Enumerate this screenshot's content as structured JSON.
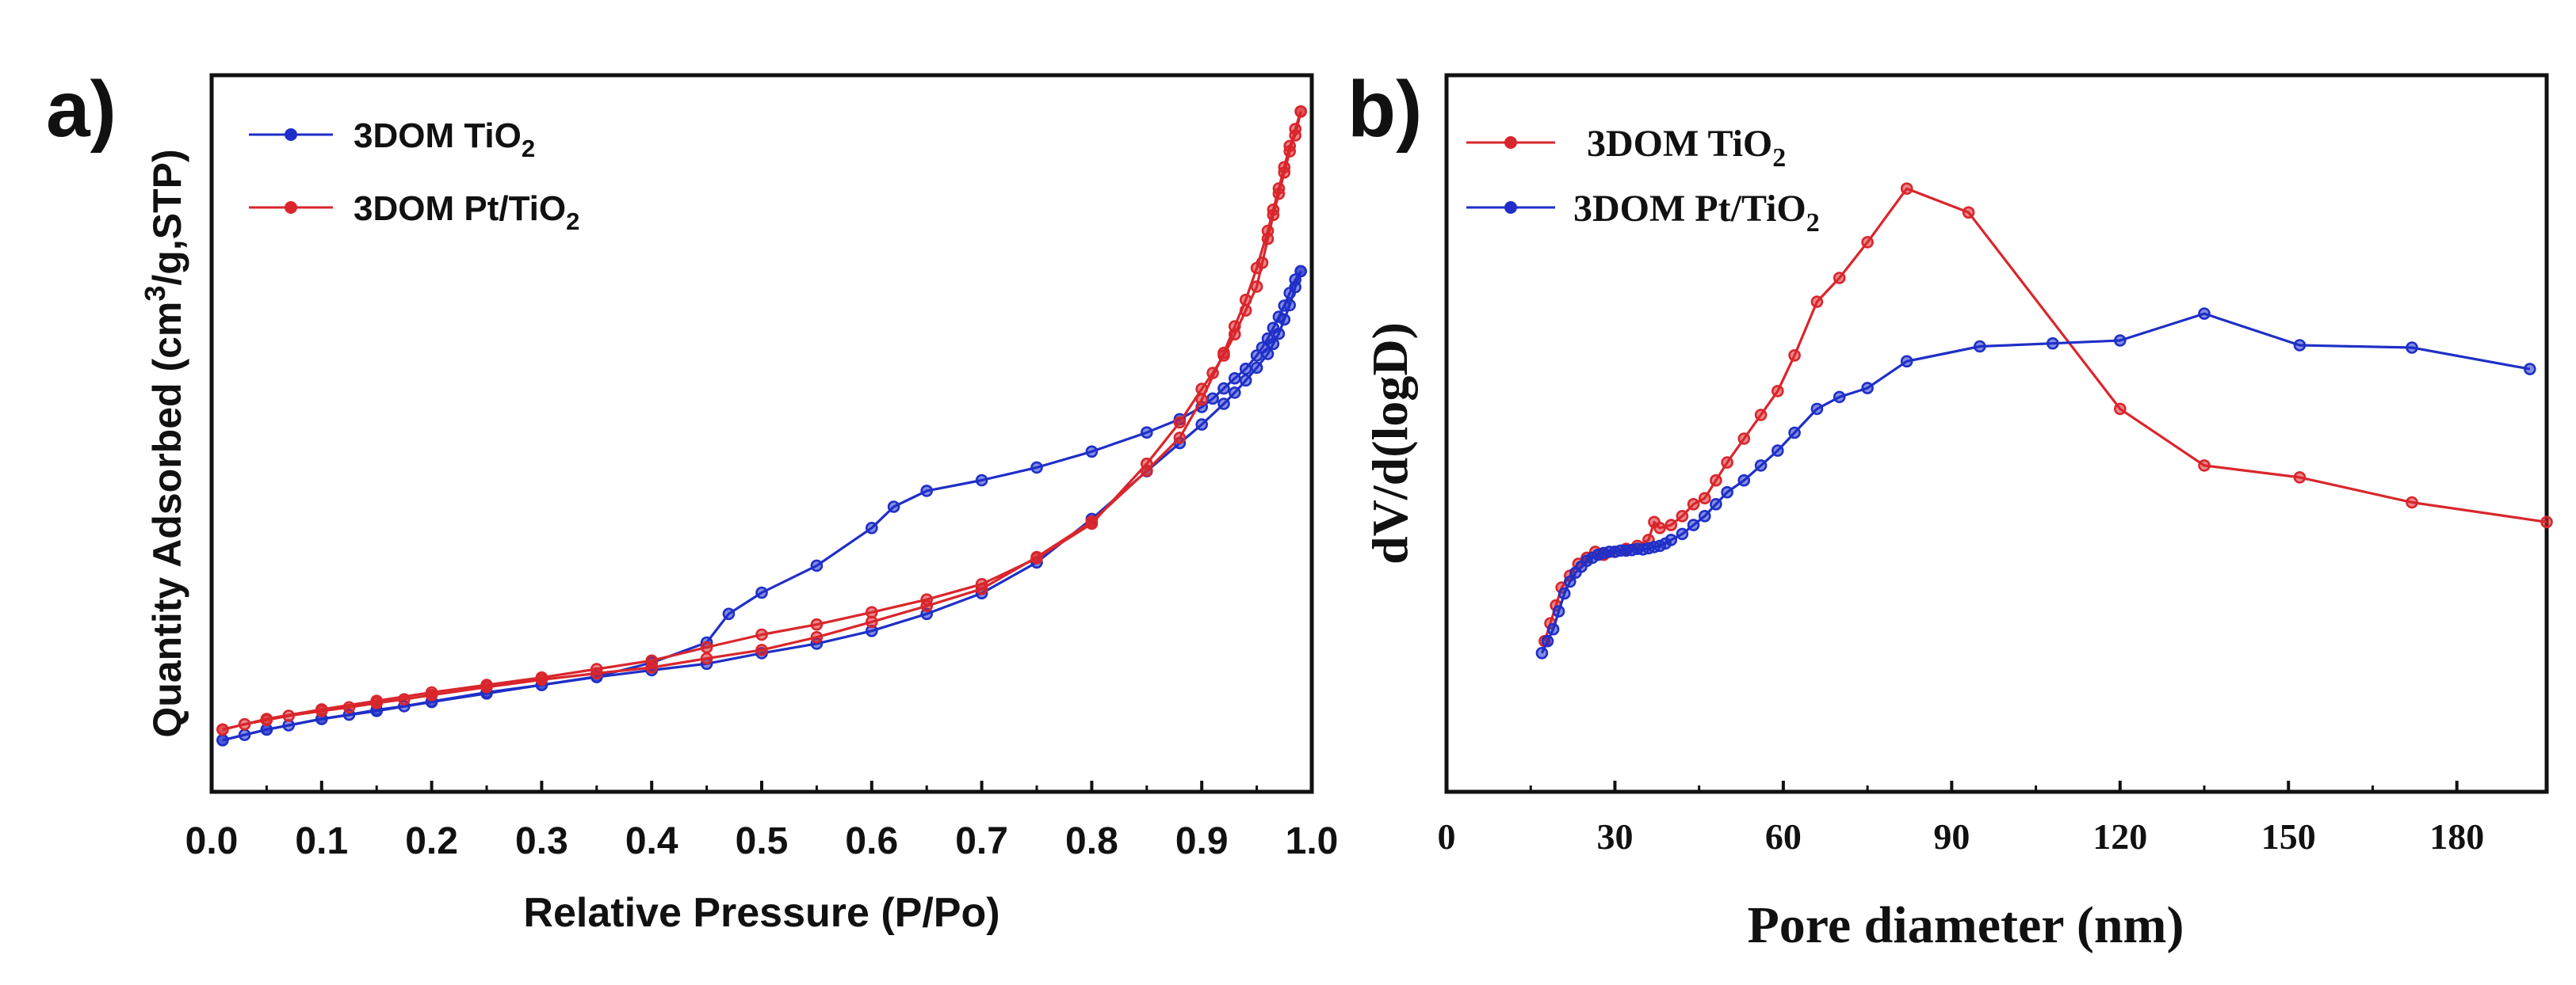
{
  "colors": {
    "blue": "#1f2fc8",
    "red": "#d9262c",
    "axis": "#111111"
  },
  "chart_data": [
    {
      "type": "line",
      "panel_label": "a)",
      "xlabel": "Relative Pressure (P/Po)",
      "ylabel": {
        "pre": "Quantity Adsorbed (cm",
        "sup": "3",
        "post": "/g,STP)"
      },
      "xlim": [
        0.0,
        1.0
      ],
      "ylim": [
        0,
        100
      ],
      "y_ticks_labeled": false,
      "xticks": [
        0.0,
        0.1,
        0.2,
        0.3,
        0.4,
        0.5,
        0.6,
        0.7,
        0.8,
        0.9,
        1.0
      ],
      "xtick_labels": [
        "0.0",
        "0.1",
        "0.2",
        "0.3",
        "0.4",
        "0.5",
        "0.6",
        "0.7",
        "0.8",
        "0.9",
        "1.0"
      ],
      "legend_position": "top-left",
      "series": [
        {
          "name": {
            "pre": "3DOM TiO",
            "sub": "2",
            "post": ""
          },
          "color": "blue",
          "adsorption": {
            "x": [
              0.01,
              0.03,
              0.05,
              0.07,
              0.1,
              0.125,
              0.15,
              0.175,
              0.2,
              0.25,
              0.3,
              0.35,
              0.4,
              0.45,
              0.5,
              0.55,
              0.6,
              0.65,
              0.7,
              0.75,
              0.8,
              0.85,
              0.88,
              0.9,
              0.92,
              0.93,
              0.94,
              0.95,
              0.96,
              0.965,
              0.97,
              0.975,
              0.98,
              0.985,
              0.99
            ],
            "y": [
              6.0,
              7.0,
              8.0,
              8.8,
              10.0,
              10.8,
              11.7,
              12.4,
              13.3,
              15.0,
              16.4,
              17.9,
              19.2,
              20.4,
              22.4,
              24.2,
              26.6,
              29.8,
              33.7,
              39.5,
              47.7,
              56.7,
              62.0,
              65.5,
              69.4,
              71.5,
              73.8,
              76.2,
              78.8,
              80.7,
              82.6,
              85.3,
              88.0,
              91.4,
              94.4
            ]
          },
          "desorption": {
            "x": [
              0.99,
              0.985,
              0.98,
              0.975,
              0.97,
              0.965,
              0.96,
              0.955,
              0.95,
              0.94,
              0.93,
              0.92,
              0.91,
              0.9,
              0.88,
              0.85,
              0.8,
              0.75,
              0.7,
              0.65,
              0.62,
              0.6,
              0.55,
              0.5,
              0.47,
              0.45,
              0.4,
              0.35,
              0.3,
              0.25,
              0.2,
              0.15,
              0.1,
              0.05,
              0.01
            ],
            "y": [
              94.4,
              92.8,
              90.3,
              87.9,
              85.8,
              83.7,
              81.7,
              80.0,
              78.5,
              76.0,
              74.2,
              72.3,
              70.4,
              68.8,
              66.5,
              64.0,
              60.4,
              57.4,
              55.0,
              53.0,
              50.0,
              46.0,
              38.9,
              33.8,
              29.8,
              24.4,
              20.6,
              18.0,
              16.4,
              14.8,
              13.2,
              11.5,
              10.0,
              8.0,
              6.0
            ]
          }
        },
        {
          "name": {
            "pre": "3DOM Pt/TiO",
            "sub": "2",
            "post": ""
          },
          "color": "red",
          "adsorption": {
            "x": [
              0.01,
              0.03,
              0.05,
              0.07,
              0.1,
              0.125,
              0.15,
              0.175,
              0.2,
              0.25,
              0.3,
              0.35,
              0.4,
              0.45,
              0.5,
              0.55,
              0.6,
              0.65,
              0.7,
              0.75,
              0.8,
              0.85,
              0.88,
              0.9,
              0.92,
              0.93,
              0.94,
              0.95,
              0.96,
              0.965,
              0.97,
              0.975,
              0.98,
              0.985,
              0.99
            ],
            "y": [
              8.0,
              9.0,
              9.8,
              10.6,
              11.5,
              12.2,
              13.0,
              13.7,
              14.5,
              16.0,
              17.4,
              18.6,
              19.7,
              21.4,
              23.0,
              25.4,
              28.3,
              31.3,
              34.5,
              40.5,
              47.2,
              56.8,
              63.0,
              70.2,
              79.0,
              84.0,
              89.0,
              95.0,
              102.0,
              106.0,
              110.0,
              114.0,
              118.0,
              120.0,
              124.5
            ]
          },
          "desorption": {
            "x": [
              0.99,
              0.985,
              0.98,
              0.975,
              0.97,
              0.965,
              0.96,
              0.955,
              0.95,
              0.94,
              0.93,
              0.92,
              0.91,
              0.9,
              0.88,
              0.85,
              0.8,
              0.75,
              0.7,
              0.65,
              0.6,
              0.55,
              0.5,
              0.45,
              0.4,
              0.35,
              0.3,
              0.25,
              0.2,
              0.15,
              0.1,
              0.05,
              0.01
            ],
            "y": [
              124.5,
              121.2,
              117.0,
              113.0,
              109.0,
              105.0,
              100.5,
              96.0,
              91.5,
              87.0,
              82.5,
              78.5,
              75.2,
              72.2,
              65.9,
              58.1,
              46.8,
              40.3,
              35.4,
              32.5,
              30.1,
              27.8,
              25.9,
              23.5,
              21.0,
              19.4,
              17.8,
              16.4,
              15.0,
              13.4,
              11.8,
              10.0,
              8.0
            ]
          }
        }
      ]
    },
    {
      "type": "line",
      "panel_label": "b)",
      "xlabel": "Pore diameter (nm)",
      "ylabel": "dV/d(logD)",
      "xlim": [
        0,
        196
      ],
      "ylim": [
        0,
        100
      ],
      "y_ticks_labeled": false,
      "xticks": [
        0,
        30,
        60,
        90,
        120,
        150,
        180
      ],
      "xtick_labels": [
        "0",
        "30",
        "60",
        "90",
        "120",
        "150",
        "180"
      ],
      "legend_position": "top-left",
      "series": [
        {
          "name": {
            "pre": "3DOM TiO",
            "sub": "2",
            "post": ""
          },
          "color": "red",
          "x": [
            17.5,
            18.5,
            19.5,
            20.5,
            22,
            23.5,
            25,
            26.5,
            28,
            30,
            32,
            34,
            36,
            37,
            38,
            40,
            42,
            44,
            46,
            48,
            50,
            53,
            56,
            59,
            62,
            66,
            70,
            75,
            82,
            93,
            120,
            135,
            152,
            172,
            196
          ],
          "y": [
            14,
            17,
            20,
            23,
            25,
            27,
            28,
            29,
            28.5,
            29,
            29.5,
            30,
            31,
            34,
            33,
            33.5,
            35,
            37,
            38,
            41,
            44,
            48,
            52,
            56,
            62,
            71,
            75,
            81,
            90,
            86,
            53,
            43.5,
            41.5,
            37.3,
            34
          ],
          "peak_y_for_scale": 90
        },
        {
          "name": {
            "pre": "3DOM Pt/TiO",
            "sub": "2",
            "post": ""
          },
          "color": "blue",
          "x": [
            17,
            18,
            19,
            20,
            21,
            22,
            23,
            24,
            25,
            26,
            27,
            28,
            29,
            30,
            31,
            32,
            33,
            34,
            35,
            36,
            37,
            38,
            39,
            40,
            42,
            44,
            46,
            48,
            50,
            53,
            56,
            59,
            62,
            66,
            70,
            75,
            82,
            95,
            108,
            120,
            135,
            152,
            172,
            193
          ],
          "y": [
            12,
            14,
            16,
            19,
            22,
            24,
            25.5,
            26.5,
            27.5,
            28,
            28.5,
            28.8,
            29,
            29,
            29.2,
            29.2,
            29.3,
            29.5,
            29.4,
            29.6,
            29.8,
            30,
            30.4,
            31,
            32,
            33.5,
            35,
            37,
            39,
            41,
            43.5,
            46,
            49,
            53,
            55,
            56.5,
            61,
            63.5,
            64,
            64.5,
            69,
            63.7,
            63.3,
            59.7
          ]
        }
      ]
    }
  ]
}
